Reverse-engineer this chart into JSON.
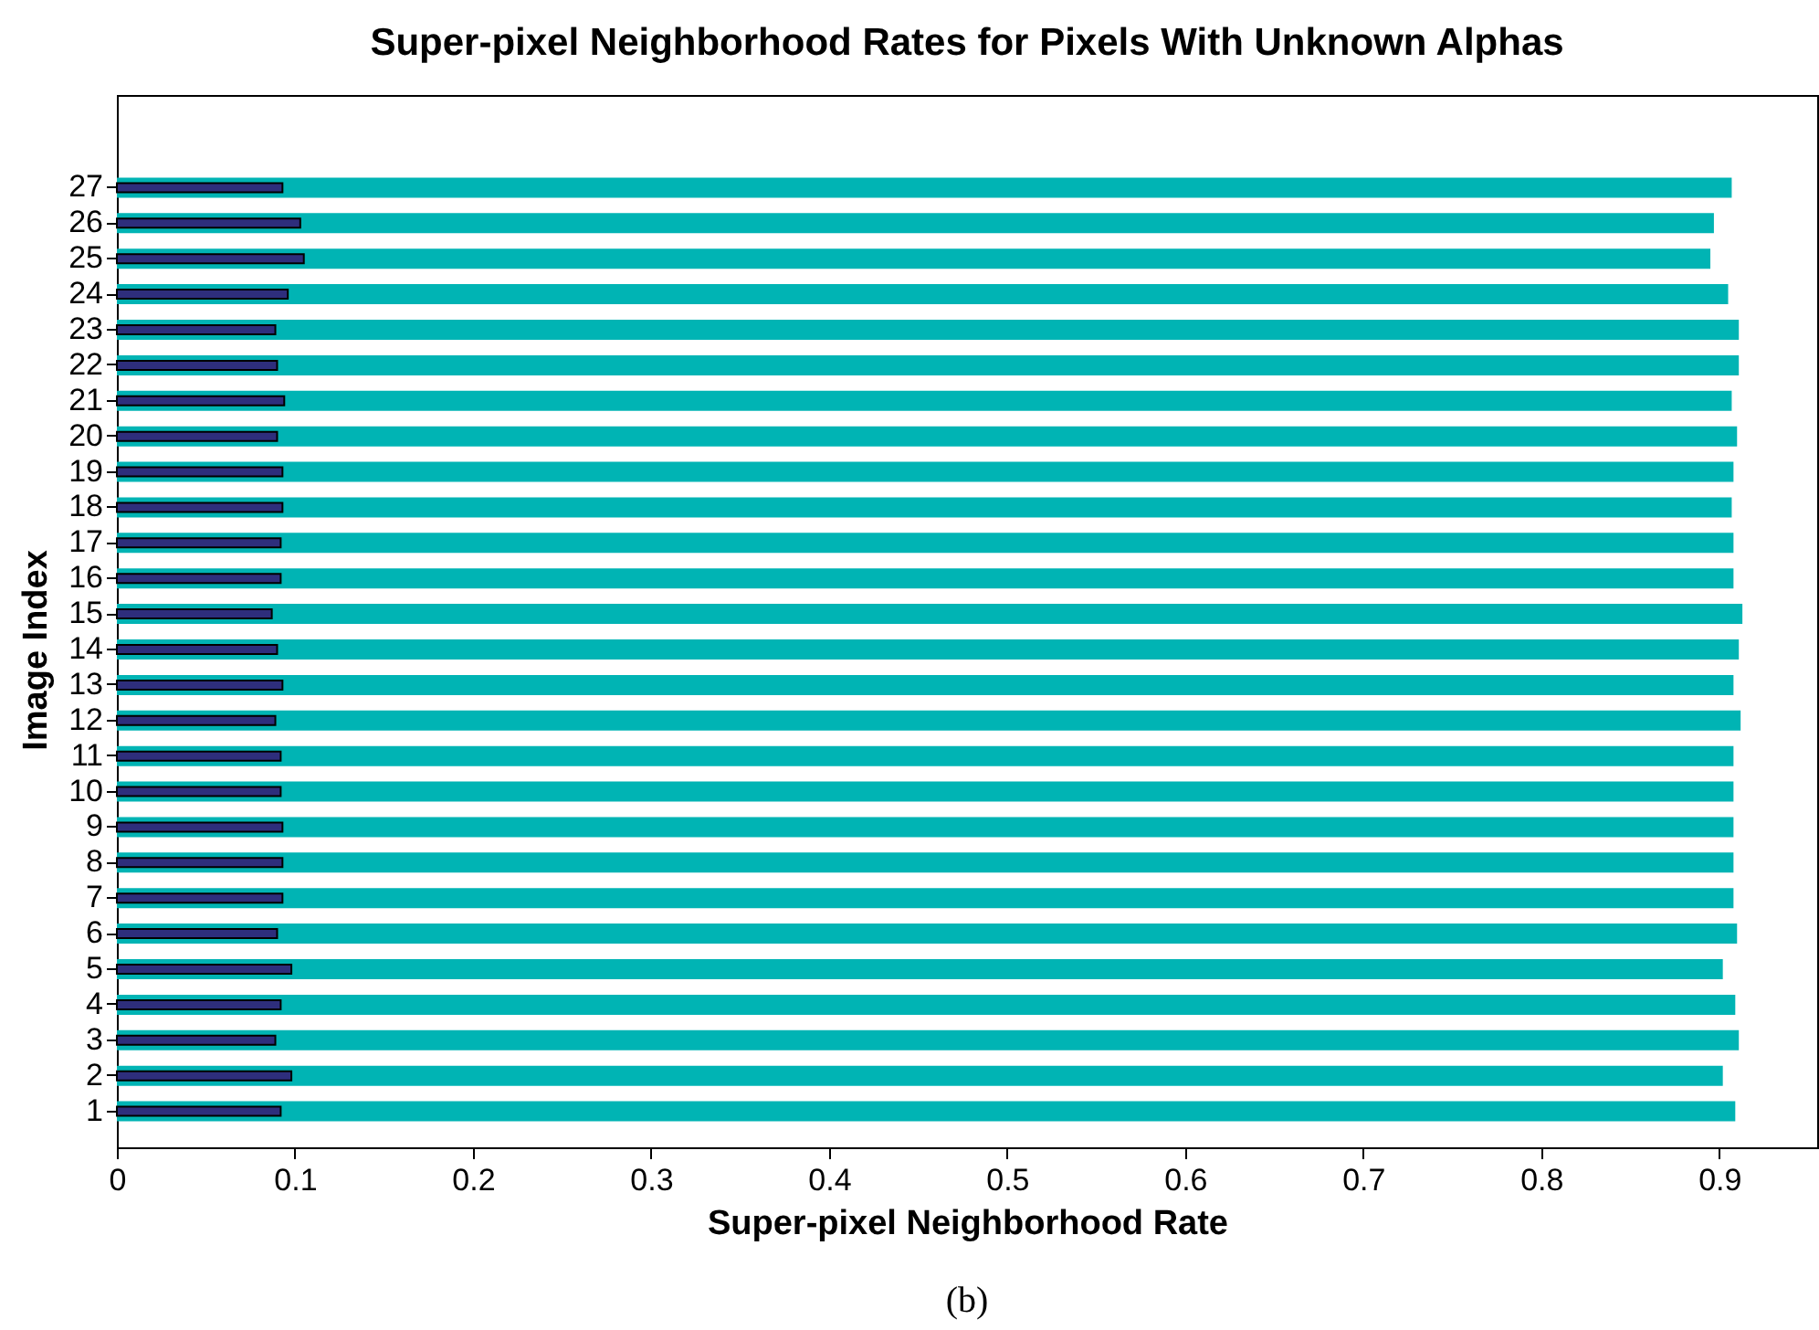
{
  "chart_data": {
    "type": "bar",
    "orientation": "horizontal",
    "title": "Super-pixel Neighborhood Rates for Pixels With Unknown Alphas",
    "xlabel": "Super-pixel Neighborhood Rate",
    "ylabel": "Image Index",
    "categories": [
      "27",
      "26",
      "25",
      "24",
      "23",
      "22",
      "21",
      "20",
      "19",
      "18",
      "17",
      "16",
      "15",
      "14",
      "13",
      "12",
      "11",
      "10",
      "9",
      "8",
      "7",
      "6",
      "5",
      "4",
      "3",
      "2",
      "1"
    ],
    "series": [
      {
        "color": "#00b4b4",
        "values": [
          0.907,
          0.897,
          0.895,
          0.905,
          0.911,
          0.911,
          0.907,
          0.91,
          0.908,
          0.907,
          0.908,
          0.908,
          0.913,
          0.911,
          0.908,
          0.912,
          0.908,
          0.908,
          0.908,
          0.908,
          0.908,
          0.91,
          0.902,
          0.909,
          0.911,
          0.902,
          0.909
        ]
      },
      {
        "color": "#2e2e7c",
        "values": [
          0.093,
          0.103,
          0.105,
          0.096,
          0.089,
          0.09,
          0.094,
          0.09,
          0.093,
          0.093,
          0.092,
          0.092,
          0.087,
          0.09,
          0.093,
          0.089,
          0.092,
          0.092,
          0.093,
          0.093,
          0.093,
          0.09,
          0.098,
          0.092,
          0.089,
          0.098,
          0.092
        ]
      }
    ],
    "xlim": [
      0,
      0.955
    ],
    "xticks": [
      0,
      0.1,
      0.2,
      0.3,
      0.4,
      0.5,
      0.6,
      0.7,
      0.8,
      0.9
    ],
    "annotations": [
      "(b)"
    ]
  }
}
